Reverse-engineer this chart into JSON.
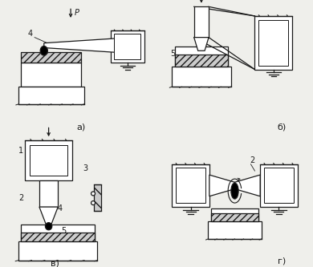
{
  "bg_color": "#efefeb",
  "line_color": "#1a1a1a",
  "fig_width": 3.9,
  "fig_height": 3.33,
  "label_a": "а)",
  "label_b": "б)",
  "label_v": "в)",
  "label_g": "г)"
}
